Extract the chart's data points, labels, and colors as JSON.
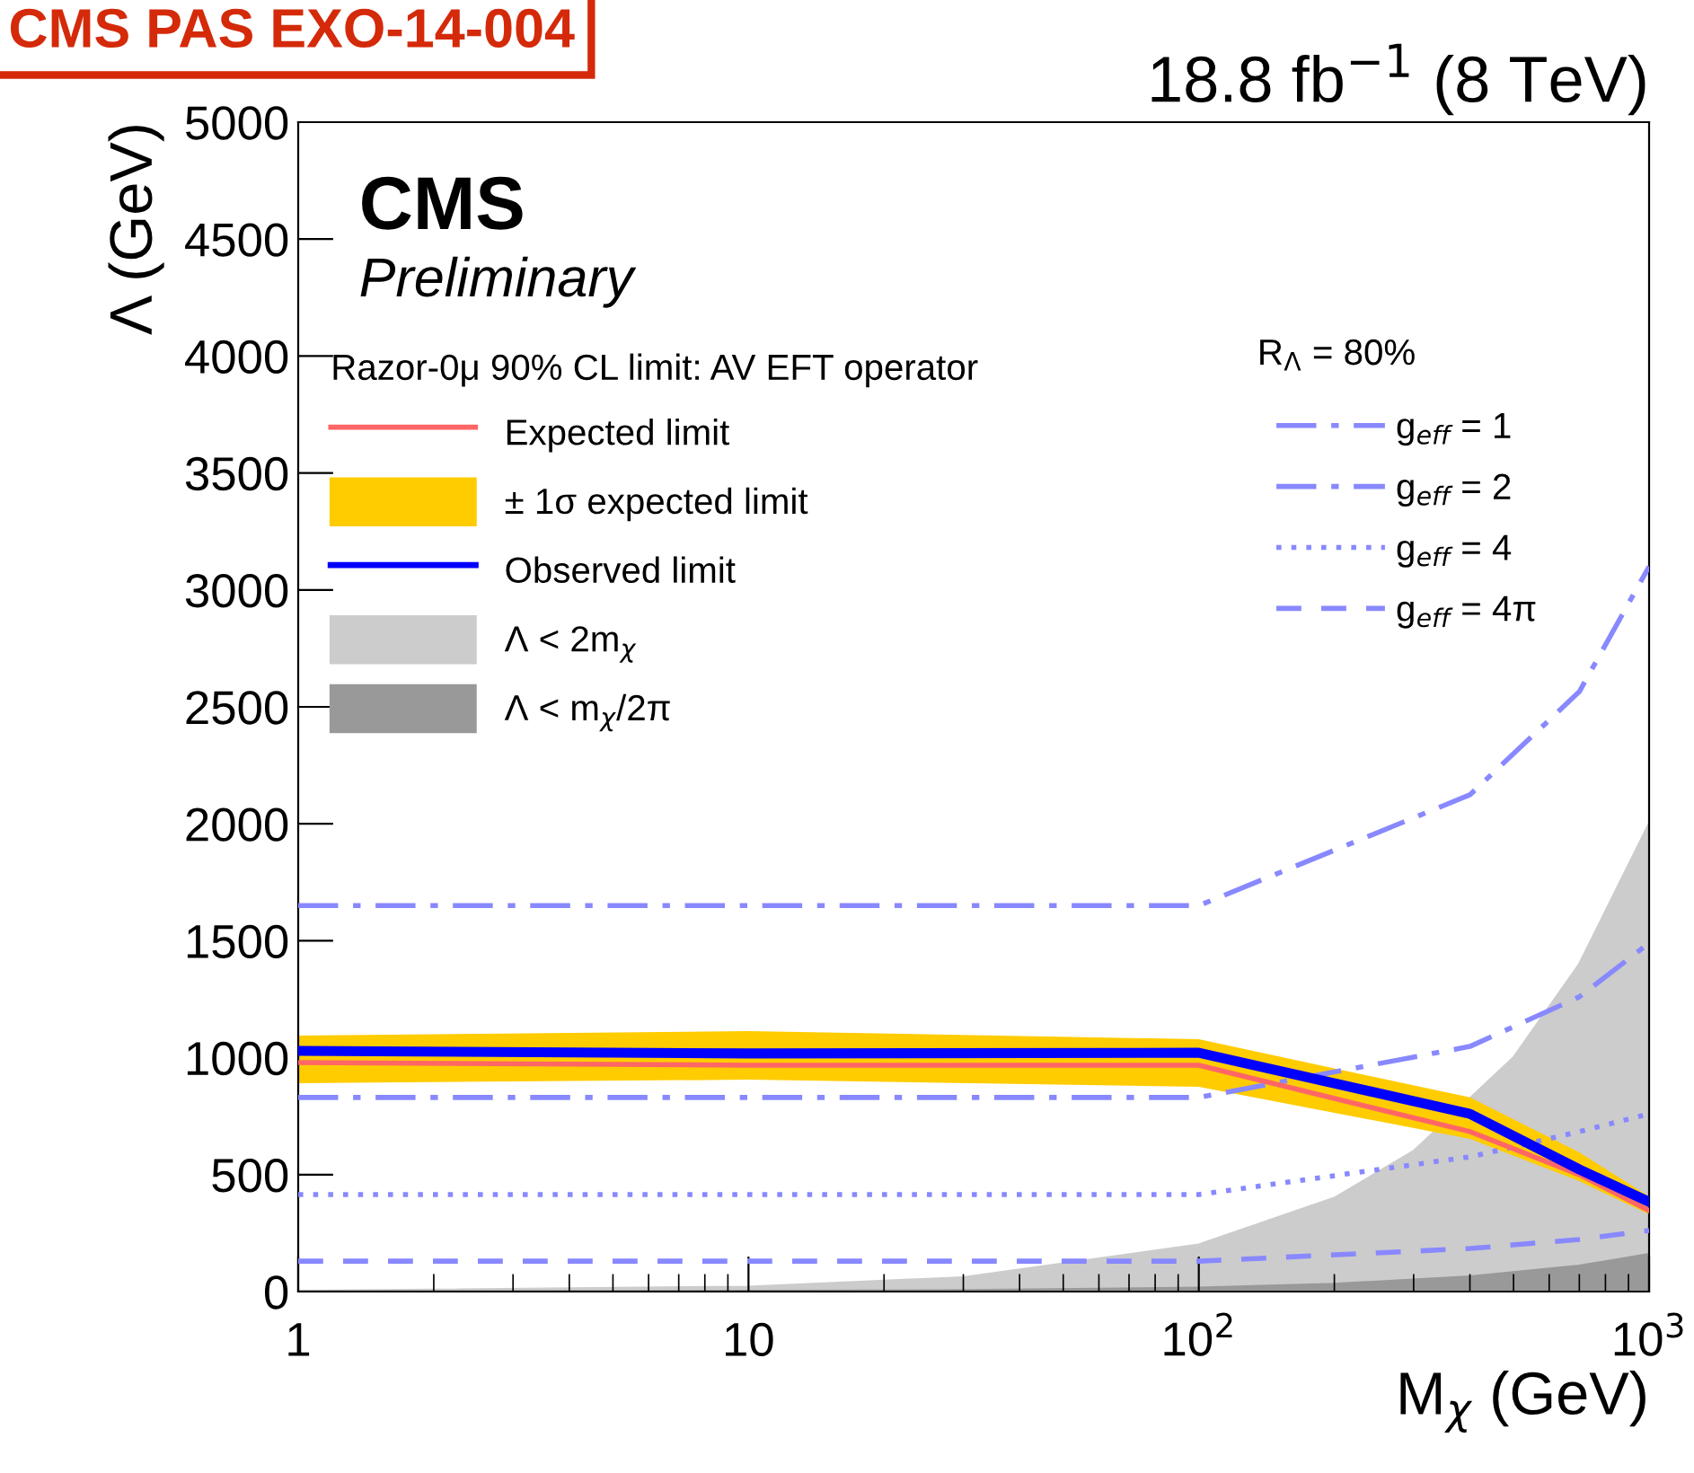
{
  "chart_data": {
    "type": "line",
    "title": "18.8 fb$^{−1}$ (8 TeV)",
    "xlabel": "M$_{χ}$ (GeV)",
    "ylabel": "Λ (GeV)",
    "legend_title": "Razor-0μ 90% CL limit: AV EFT operator",
    "annotations": [
      "CMS PAS EXO-14-004",
      "CMS",
      "Preliminary",
      "R$_{Λ}$ = 80%"
    ],
    "log": "x",
    "xlim": [
      1,
      1000
    ],
    "ylim": [
      0,
      5000
    ],
    "xticks": [
      1,
      10,
      {
        "value": 100,
        "label": "10$^{2}$"
      },
      {
        "value": 1000,
        "label": "10$^{3}$"
      }
    ],
    "yticks": [
      0,
      500,
      1000,
      1500,
      2000,
      2500,
      3000,
      3500,
      4000,
      4500,
      5000
    ],
    "grid": false,
    "legend": "top left",
    "x": [
      1,
      10,
      100,
      400,
      700,
      1000
    ],
    "series": [
      {
        "name": "Λ < 2m$_{χ}$",
        "type": "area",
        "color": "#cccccc",
        "x": [
          1,
          10,
          30,
          100,
          200,
          300,
          500,
          700,
          1000
        ],
        "values": [
          2,
          20,
          60,
          200,
          400,
          600,
          1000,
          1400,
          2000
        ]
      },
      {
        "name": "Λ < m$_{χ}$/2π",
        "type": "area",
        "color": "#999999",
        "x": [
          1,
          10,
          30,
          100,
          200,
          400,
          700,
          1000
        ],
        "values": [
          0,
          2,
          5,
          16,
          32,
          64,
          110,
          160
        ]
      },
      {
        "name": "g$_{eff}$ = 1",
        "color": "#8888ff",
        "line_style": "dashdot",
        "values": [
          1650,
          1650,
          1650,
          2124,
          2565,
          3100
        ]
      },
      {
        "name": "g$_{eff}$ = 2",
        "color": "#8888ff",
        "line_style": "dashdot",
        "values": [
          830,
          830,
          830,
          1048,
          1260,
          1490
        ]
      },
      {
        "name": "g$_{eff}$ = 4",
        "color": "#8888ff",
        "line_style": "dotted",
        "values": [
          415,
          415,
          415,
          576,
          684,
          760
        ]
      },
      {
        "name": "g$_{eff}$ = 4π",
        "color": "#8888ff",
        "line_style": "dashed",
        "values": [
          130,
          130,
          130,
          184,
          223,
          261
        ]
      },
      {
        "name": "± 1σ expected limit",
        "type": "area",
        "color": "#ffcc00",
        "values": [
          null,
          null,
          null,
          null,
          null,
          null
        ],
        "lower": [
          891,
          906,
          876,
          653,
          472,
          330
        ],
        "upper": [
          1094,
          1114,
          1079,
          830,
          595,
          407
        ]
      },
      {
        "name": "Expected limit",
        "color": "#ff6666",
        "line_style": "solid",
        "values": [
          979,
          968,
          968,
          684,
          500,
          346
        ]
      },
      {
        "name": "Observed limit",
        "color": "#0000ff",
        "line_style": "solid",
        "values": [
          1029,
          1018,
          1021,
          760,
          522,
          384
        ]
      }
    ]
  }
}
